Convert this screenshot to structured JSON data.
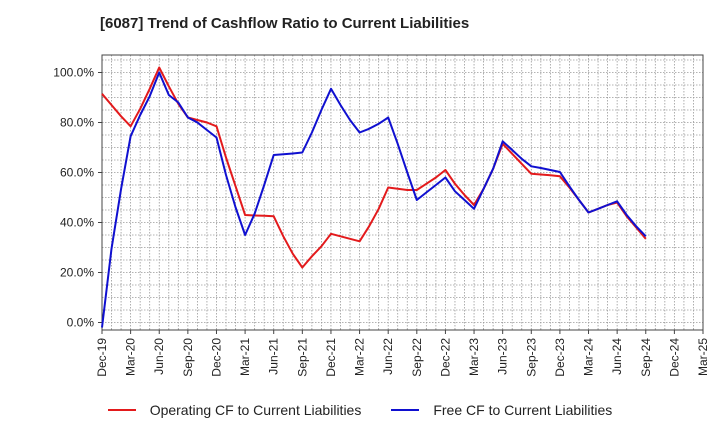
{
  "chart_data": {
    "type": "line",
    "title": "[6087]  Trend of Cashflow Ratio to Current Liabilities",
    "xlabel": "",
    "ylabel": "",
    "ylim": [
      -3,
      107
    ],
    "grid": true,
    "legend_position": "bottom",
    "x_tick_labels": [
      "Dec-19",
      "Mar-20",
      "Jun-20",
      "Sep-20",
      "Dec-20",
      "Mar-21",
      "Jun-21",
      "Sep-21",
      "Dec-21",
      "Mar-22",
      "Jun-22",
      "Sep-22",
      "Dec-22",
      "Mar-23",
      "Jun-23",
      "Sep-23",
      "Dec-23",
      "Mar-24",
      "Jun-24",
      "Sep-24",
      "Dec-24",
      "Mar-25"
    ],
    "y_ticks": [
      0,
      20,
      40,
      60,
      80,
      100
    ],
    "y_tick_labels": [
      "0.0%",
      "20.0%",
      "40.0%",
      "60.0%",
      "80.0%",
      "100.0%"
    ],
    "x": [
      "Dec-19",
      "Jan-20",
      "Feb-20",
      "Mar-20",
      "Apr-20",
      "May-20",
      "Jun-20",
      "Jul-20",
      "Aug-20",
      "Sep-20",
      "Oct-20",
      "Nov-20",
      "Dec-20",
      "Jan-21",
      "Feb-21",
      "Mar-21",
      "Apr-21",
      "May-21",
      "Jun-21",
      "Jul-21",
      "Aug-21",
      "Sep-21",
      "Oct-21",
      "Nov-21",
      "Dec-21",
      "Jan-22",
      "Feb-22",
      "Mar-22",
      "Apr-22",
      "May-22",
      "Jun-22",
      "Jul-22",
      "Aug-22",
      "Sep-22",
      "Oct-22",
      "Nov-22",
      "Dec-22",
      "Jan-23",
      "Feb-23",
      "Mar-23",
      "Apr-23",
      "May-23",
      "Jun-23",
      "Jul-23",
      "Aug-23",
      "Sep-23",
      "Oct-23",
      "Nov-23",
      "Dec-23",
      "Jan-24",
      "Feb-24",
      "Mar-24",
      "Apr-24",
      "May-24",
      "Jun-24",
      "Jul-24",
      "Aug-24",
      "Sep-24"
    ],
    "series": [
      {
        "name": "Operating CF to Current Liabilities",
        "color": "#e31a1c",
        "values": [
          91.5,
          87,
          82.5,
          78.5,
          85.5,
          93.5,
          102,
          94.5,
          87.5,
          82,
          81,
          80,
          78.5,
          66,
          54.5,
          43,
          42.8,
          42.7,
          42.5,
          34.5,
          27.5,
          22,
          26.5,
          30.5,
          35.5,
          34.5,
          33.5,
          32.5,
          38.5,
          45.5,
          54,
          53.5,
          53,
          53,
          55.5,
          58,
          61,
          55.5,
          51,
          47,
          53.5,
          61.5,
          71.5,
          67.5,
          63.5,
          59.5,
          59.2,
          58.9,
          58.5,
          54,
          49,
          44,
          45.5,
          47,
          48,
          42.5,
          38,
          33.5
        ]
      },
      {
        "name": "Free CF to Current Liabilities",
        "color": "#1010d0",
        "values": [
          -2,
          29.5,
          53.5,
          74.5,
          83,
          90.5,
          100,
          91,
          88,
          82,
          80,
          77,
          74,
          59,
          46,
          35,
          43.5,
          55,
          67,
          67.3,
          67.6,
          68,
          76,
          85,
          93.5,
          87,
          81,
          76,
          77.5,
          79.5,
          82,
          71.5,
          60,
          49,
          52,
          55,
          58,
          52.5,
          49,
          45.5,
          53.5,
          61.5,
          72.5,
          69,
          65.5,
          62.5,
          61.8,
          61,
          60.2,
          54.5,
          49,
          44,
          45.5,
          47,
          48.5,
          43,
          38.5,
          34.5
        ]
      }
    ]
  }
}
